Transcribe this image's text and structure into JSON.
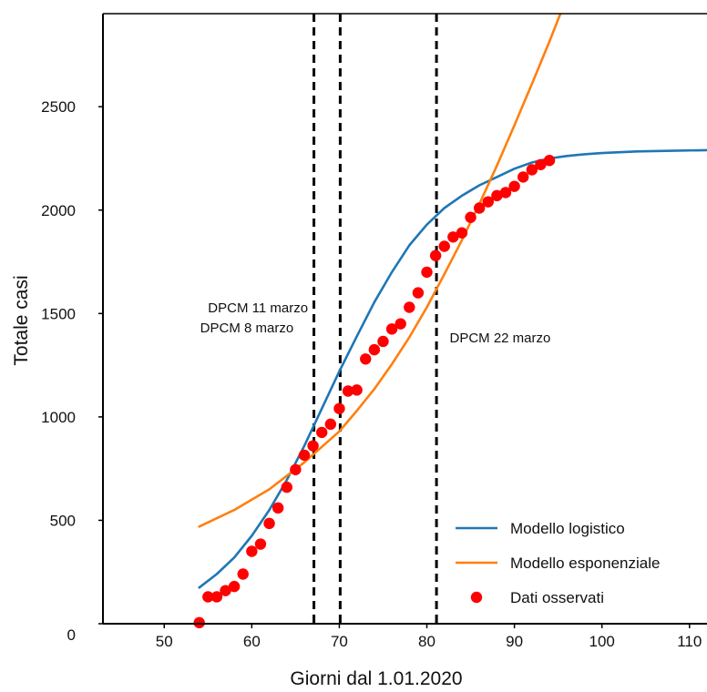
{
  "chart_data": {
    "type": "line",
    "xlabel": "Giorni dal 1.01.2020",
    "ylabel": "Totale casi",
    "xlim": [
      43,
      112
    ],
    "ylim": [
      0,
      2950
    ],
    "xticks": [
      50,
      60,
      70,
      80,
      90,
      100,
      110
    ],
    "yticks": [
      0,
      500,
      1000,
      1500,
      2000,
      2500
    ],
    "grid": false,
    "legend_position": "bottom-right",
    "colors": {
      "logistic": "#1f77b4",
      "exponential": "#ff7f0e",
      "observed": "#ff0000",
      "vline": "#000000"
    },
    "annotations": [
      {
        "text": "DPCM 8 marzo",
        "x": 54.1,
        "y": 1410
      },
      {
        "text": "DPCM 11 marzo",
        "x": 55.0,
        "y": 1505
      },
      {
        "text": "DPCM 22 marzo",
        "x": 82.6,
        "y": 1360
      }
    ],
    "vlines": [
      {
        "x": 67.1,
        "label": "DPCM 8 marzo"
      },
      {
        "x": 70.1,
        "label": "DPCM 11 marzo"
      },
      {
        "x": 81.1,
        "label": "DPCM 22 marzo"
      }
    ],
    "series": [
      {
        "name": "Modello logistico",
        "kind": "line",
        "color": "#1f77b4",
        "x": [
          54,
          56,
          58,
          60,
          62,
          64,
          66,
          68,
          70,
          72,
          74,
          76,
          78,
          80,
          82,
          84,
          86,
          88,
          90,
          92,
          94,
          96,
          98,
          100,
          104,
          108,
          112
        ],
        "y": [
          175,
          240,
          320,
          425,
          550,
          695,
          860,
          1040,
          1220,
          1390,
          1555,
          1700,
          1830,
          1930,
          2010,
          2070,
          2120,
          2160,
          2200,
          2230,
          2250,
          2262,
          2270,
          2276,
          2284,
          2287,
          2290
        ]
      },
      {
        "name": "Modello esponenziale",
        "kind": "line",
        "color": "#ff7f0e",
        "x": [
          54,
          58,
          62,
          66,
          70,
          72,
          74,
          76,
          78,
          80,
          82,
          84,
          86,
          88,
          90,
          92,
          94,
          96,
          97
        ],
        "y": [
          470,
          550,
          650,
          780,
          930,
          1030,
          1135,
          1255,
          1385,
          1530,
          1690,
          1855,
          2030,
          2215,
          2410,
          2610,
          2815,
          3030,
          3160
        ]
      },
      {
        "name": "Dati osservati",
        "kind": "scatter",
        "color": "#ff0000",
        "x": [
          54,
          55,
          56,
          57,
          58,
          59,
          60,
          61,
          62,
          63,
          64,
          65,
          66,
          67,
          68,
          69,
          70,
          71,
          72,
          73,
          74,
          75,
          76,
          77,
          78,
          79,
          80,
          81,
          82,
          83,
          84,
          85,
          86,
          87,
          88,
          89,
          90,
          91,
          92,
          93,
          94
        ],
        "y": [
          5,
          130,
          130,
          160,
          180,
          240,
          350,
          385,
          485,
          560,
          660,
          745,
          815,
          860,
          925,
          965,
          1040,
          1125,
          1130,
          1280,
          1325,
          1365,
          1425,
          1450,
          1530,
          1600,
          1700,
          1780,
          1825,
          1870,
          1890,
          1965,
          2010,
          2040,
          2070,
          2085,
          2115,
          2160,
          2195,
          2220,
          2240
        ]
      }
    ]
  }
}
